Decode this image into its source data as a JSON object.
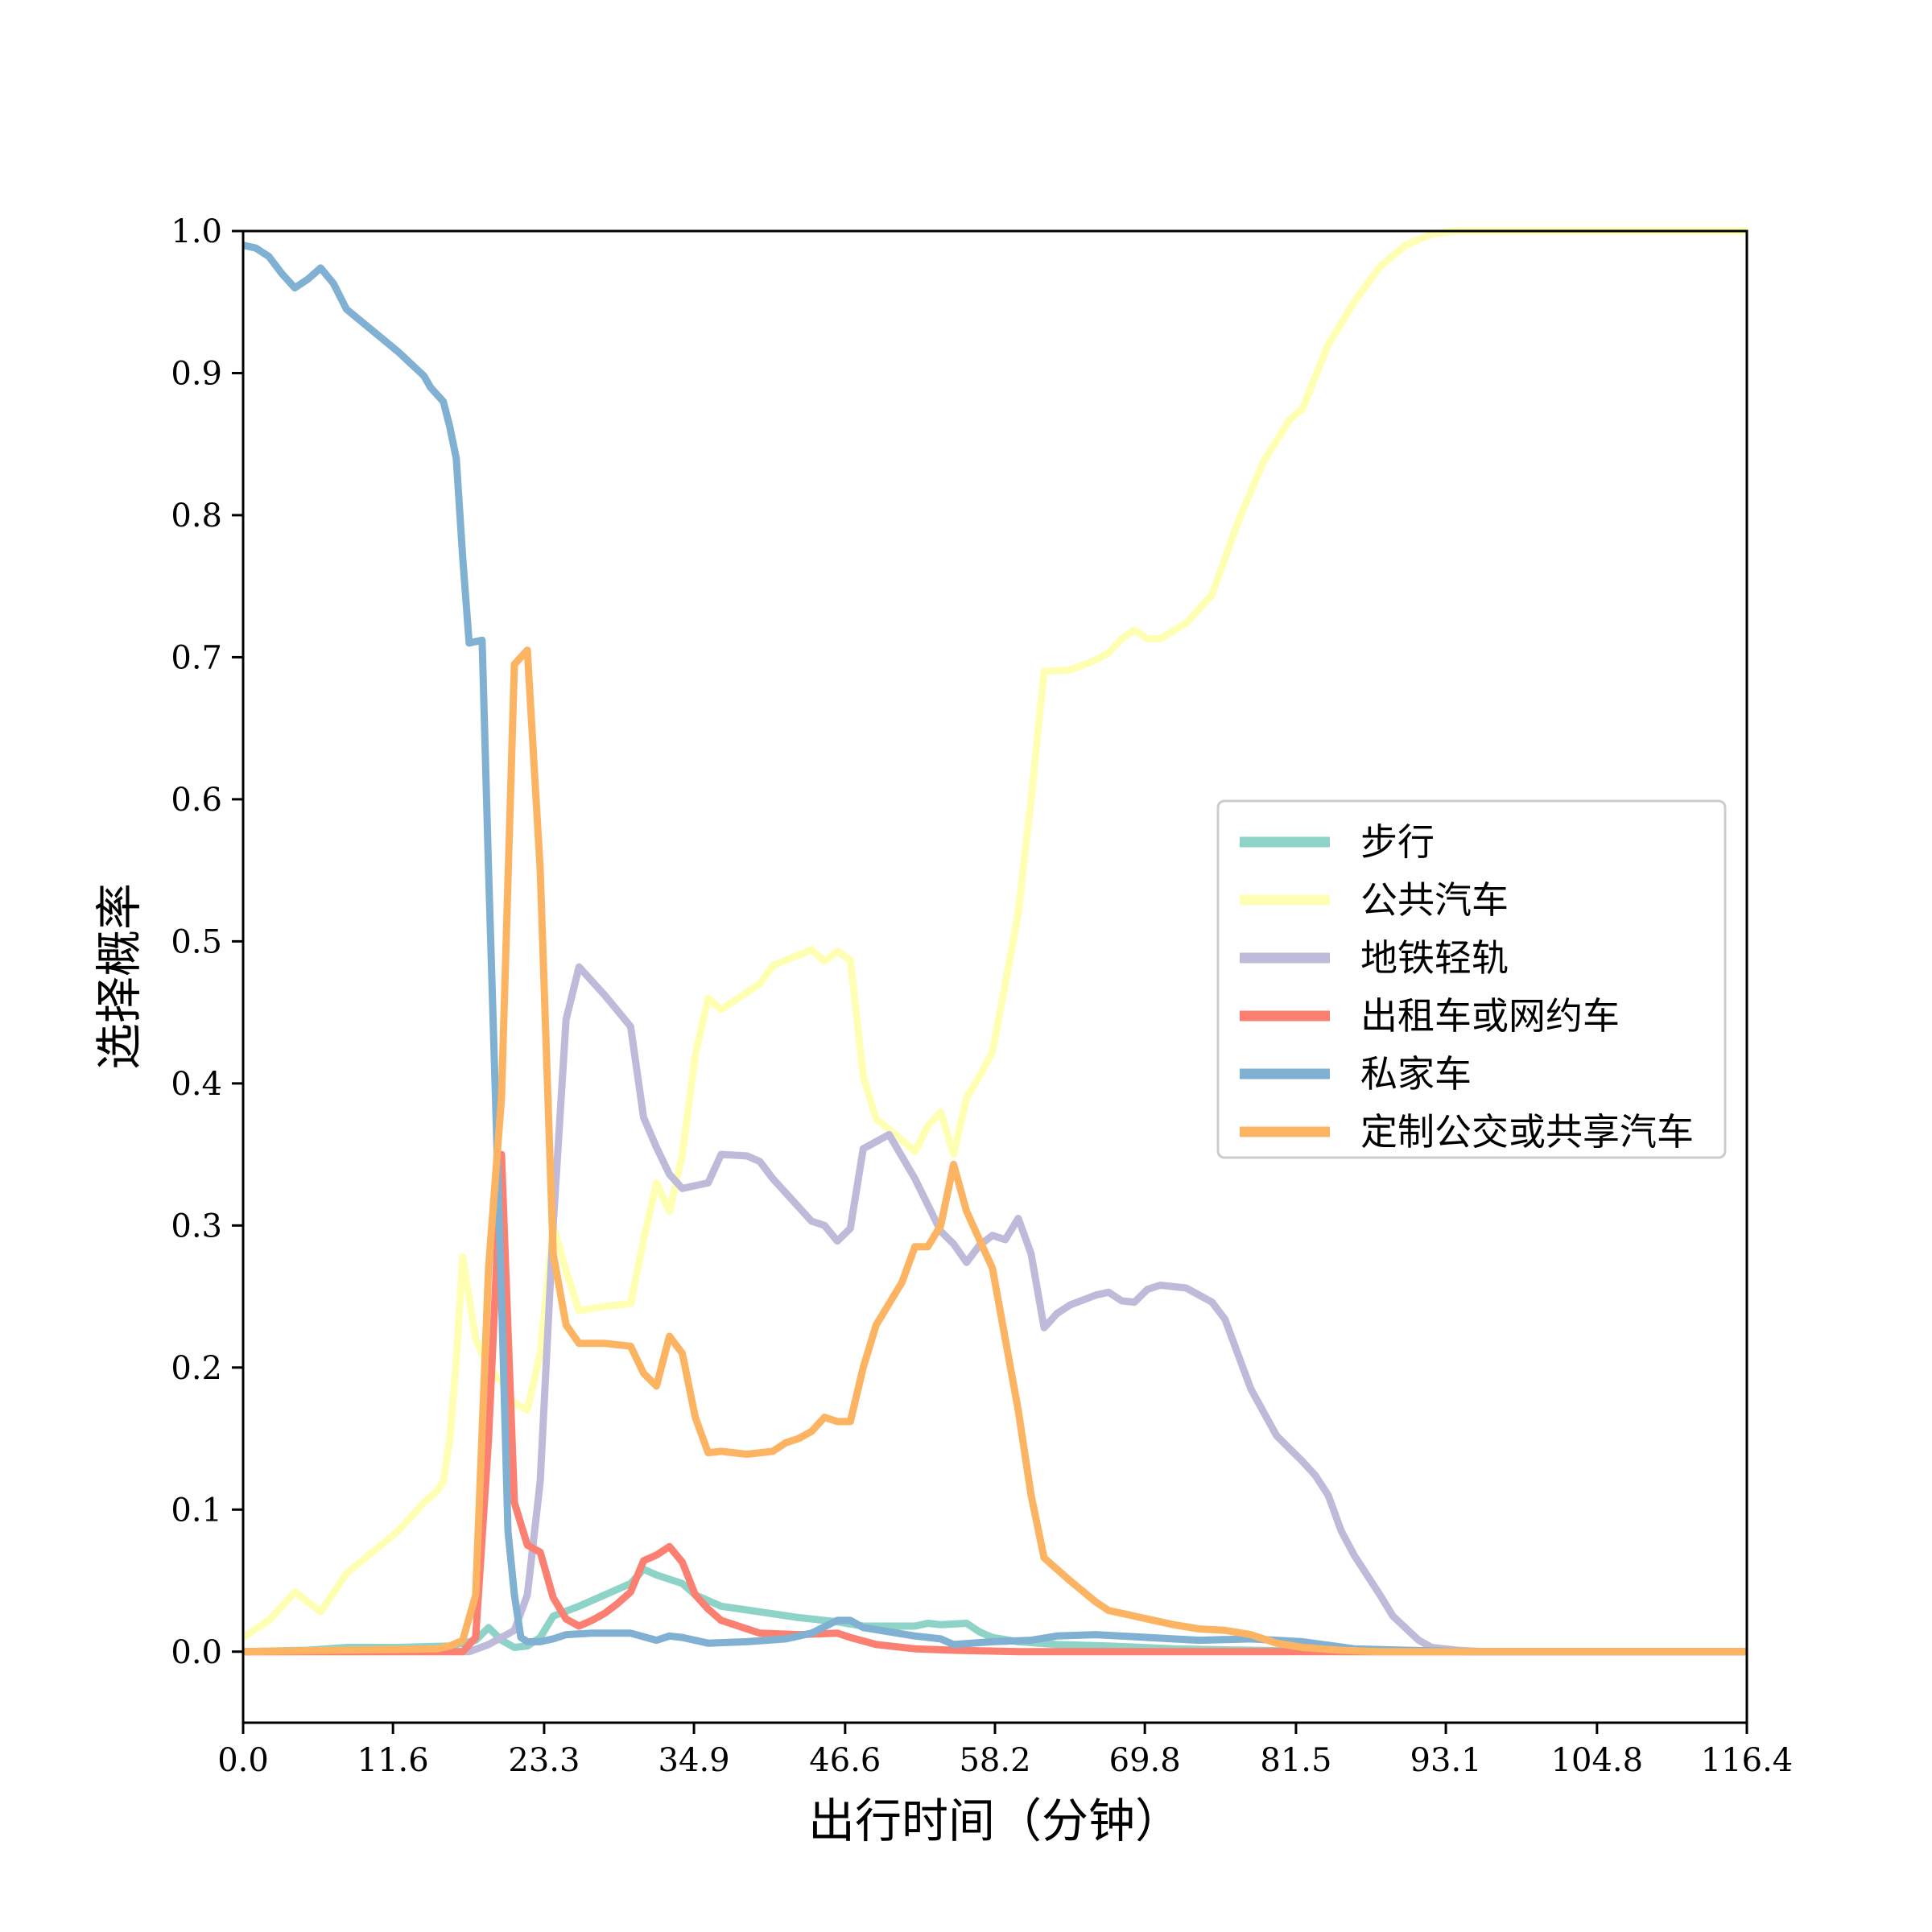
{
  "chart_data": {
    "type": "line",
    "title": "",
    "xlabel": "出行时间（分钟）",
    "ylabel": "选择概率",
    "xlim": [
      0,
      116.4
    ],
    "ylim": [
      -0.05,
      1.0
    ],
    "xticks": [
      "0.0",
      "11.6",
      "23.3",
      "34.9",
      "46.6",
      "58.2",
      "69.8",
      "81.5",
      "93.1",
      "104.8",
      "116.4"
    ],
    "yticks": [
      "0.0",
      "0.1",
      "0.2",
      "0.3",
      "0.4",
      "0.5",
      "0.6",
      "0.7",
      "0.8",
      "0.9",
      "1.0"
    ],
    "legend_position": "center-right",
    "grid": false,
    "series": [
      {
        "name": "步行",
        "color": "#8dd3c7",
        "points": [
          [
            0,
            0
          ],
          [
            5,
            0.001
          ],
          [
            8,
            0.003
          ],
          [
            12,
            0.003
          ],
          [
            16,
            0.004
          ],
          [
            18,
            0.008
          ],
          [
            19,
            0.017
          ],
          [
            20,
            0.008
          ],
          [
            21,
            0.003
          ],
          [
            22,
            0.004
          ],
          [
            23,
            0.01
          ],
          [
            24,
            0.025
          ],
          [
            26,
            0.032
          ],
          [
            28,
            0.04
          ],
          [
            30,
            0.048
          ],
          [
            31,
            0.058
          ],
          [
            32,
            0.054
          ],
          [
            34,
            0.048
          ],
          [
            35,
            0.04
          ],
          [
            37,
            0.032
          ],
          [
            40,
            0.028
          ],
          [
            43,
            0.024
          ],
          [
            46,
            0.021
          ],
          [
            48,
            0.018
          ],
          [
            52,
            0.018
          ],
          [
            53,
            0.02
          ],
          [
            54,
            0.019
          ],
          [
            56,
            0.02
          ],
          [
            57,
            0.014
          ],
          [
            58,
            0.01
          ],
          [
            60,
            0.007
          ],
          [
            63,
            0.005
          ],
          [
            67,
            0.004
          ],
          [
            72,
            0.002
          ],
          [
            78,
            0.001
          ],
          [
            85,
            0
          ],
          [
            116.4,
            0
          ]
        ]
      },
      {
        "name": "公共汽车",
        "color": "#ffffb3",
        "points": [
          [
            0,
            0.01
          ],
          [
            2,
            0.022
          ],
          [
            4,
            0.042
          ],
          [
            6,
            0.028
          ],
          [
            8,
            0.055
          ],
          [
            10,
            0.07
          ],
          [
            12,
            0.085
          ],
          [
            14,
            0.105
          ],
          [
            15,
            0.113
          ],
          [
            15.5,
            0.12
          ],
          [
            16,
            0.15
          ],
          [
            16.5,
            0.205
          ],
          [
            17,
            0.278
          ],
          [
            18,
            0.22
          ],
          [
            19,
            0.2
          ],
          [
            20,
            0.19
          ],
          [
            21,
            0.175
          ],
          [
            22,
            0.17
          ],
          [
            23,
            0.21
          ],
          [
            24,
            0.3
          ],
          [
            25,
            0.268
          ],
          [
            26,
            0.24
          ],
          [
            28,
            0.243
          ],
          [
            30,
            0.245
          ],
          [
            31,
            0.29
          ],
          [
            32,
            0.33
          ],
          [
            33,
            0.31
          ],
          [
            34,
            0.35
          ],
          [
            35,
            0.42
          ],
          [
            36,
            0.46
          ],
          [
            37,
            0.452
          ],
          [
            38,
            0.458
          ],
          [
            40,
            0.47
          ],
          [
            41,
            0.483
          ],
          [
            44,
            0.494
          ],
          [
            45,
            0.486
          ],
          [
            46,
            0.493
          ],
          [
            47,
            0.487
          ],
          [
            48,
            0.405
          ],
          [
            49,
            0.375
          ],
          [
            51,
            0.36
          ],
          [
            52,
            0.352
          ],
          [
            53,
            0.37
          ],
          [
            54,
            0.38
          ],
          [
            55,
            0.35
          ],
          [
            56,
            0.39
          ],
          [
            57,
            0.405
          ],
          [
            58,
            0.422
          ],
          [
            59,
            0.47
          ],
          [
            60,
            0.52
          ],
          [
            61,
            0.6
          ],
          [
            62,
            0.69
          ],
          [
            64,
            0.691
          ],
          [
            66,
            0.698
          ],
          [
            67,
            0.703
          ],
          [
            68,
            0.713
          ],
          [
            69,
            0.719
          ],
          [
            70,
            0.713
          ],
          [
            71,
            0.713
          ],
          [
            73,
            0.724
          ],
          [
            75,
            0.744
          ],
          [
            77,
            0.795
          ],
          [
            79,
            0.838
          ],
          [
            81,
            0.867
          ],
          [
            82,
            0.875
          ],
          [
            84,
            0.92
          ],
          [
            86,
            0.95
          ],
          [
            88,
            0.975
          ],
          [
            90,
            0.99
          ],
          [
            92,
            0.998
          ],
          [
            94,
            1.0
          ],
          [
            116.4,
            1.0
          ]
        ]
      },
      {
        "name": "地铁轻轨",
        "color": "#bebada",
        "points": [
          [
            0,
            0
          ],
          [
            16,
            0
          ],
          [
            17.5,
            0
          ],
          [
            19,
            0.005
          ],
          [
            20,
            0.01
          ],
          [
            21,
            0.015
          ],
          [
            22,
            0.04
          ],
          [
            23,
            0.12
          ],
          [
            24,
            0.3
          ],
          [
            25,
            0.445
          ],
          [
            26,
            0.482
          ],
          [
            28,
            0.462
          ],
          [
            30,
            0.44
          ],
          [
            31,
            0.376
          ],
          [
            32,
            0.355
          ],
          [
            33,
            0.336
          ],
          [
            34,
            0.326
          ],
          [
            35,
            0.328
          ],
          [
            36,
            0.33
          ],
          [
            37,
            0.35
          ],
          [
            39,
            0.349
          ],
          [
            40,
            0.345
          ],
          [
            41,
            0.333
          ],
          [
            43,
            0.313
          ],
          [
            44,
            0.303
          ],
          [
            45,
            0.3
          ],
          [
            46,
            0.289
          ],
          [
            47,
            0.298
          ],
          [
            48,
            0.354
          ],
          [
            50,
            0.364
          ],
          [
            52,
            0.333
          ],
          [
            54,
            0.296
          ],
          [
            55,
            0.287
          ],
          [
            56,
            0.274
          ],
          [
            57,
            0.286
          ],
          [
            58,
            0.293
          ],
          [
            59,
            0.29
          ],
          [
            60,
            0.305
          ],
          [
            61,
            0.28
          ],
          [
            62,
            0.228
          ],
          [
            63,
            0.238
          ],
          [
            64,
            0.244
          ],
          [
            66,
            0.251
          ],
          [
            67,
            0.253
          ],
          [
            68,
            0.247
          ],
          [
            69,
            0.246
          ],
          [
            70,
            0.255
          ],
          [
            71,
            0.258
          ],
          [
            73,
            0.256
          ],
          [
            75,
            0.246
          ],
          [
            76,
            0.234
          ],
          [
            78,
            0.185
          ],
          [
            80,
            0.152
          ],
          [
            82,
            0.134
          ],
          [
            83,
            0.124
          ],
          [
            84,
            0.11
          ],
          [
            85,
            0.085
          ],
          [
            86,
            0.068
          ],
          [
            88,
            0.04
          ],
          [
            89,
            0.025
          ],
          [
            91,
            0.008
          ],
          [
            92,
            0.003
          ],
          [
            94,
            0.001
          ],
          [
            96,
            0
          ],
          [
            116.4,
            0
          ]
        ]
      },
      {
        "name": "出租车或网约车",
        "color": "#fb8072",
        "points": [
          [
            0,
            0
          ],
          [
            17,
            0
          ],
          [
            18,
            0.01
          ],
          [
            19,
            0.15
          ],
          [
            20,
            0.35
          ],
          [
            21,
            0.105
          ],
          [
            22,
            0.075
          ],
          [
            23,
            0.07
          ],
          [
            24,
            0.038
          ],
          [
            25,
            0.023
          ],
          [
            26,
            0.018
          ],
          [
            27,
            0.022
          ],
          [
            28,
            0.027
          ],
          [
            29,
            0.034
          ],
          [
            30,
            0.042
          ],
          [
            31,
            0.064
          ],
          [
            32,
            0.068
          ],
          [
            33,
            0.074
          ],
          [
            34,
            0.063
          ],
          [
            35,
            0.04
          ],
          [
            36,
            0.03
          ],
          [
            37,
            0.022
          ],
          [
            40,
            0.013
          ],
          [
            43,
            0.012
          ],
          [
            46,
            0.013
          ],
          [
            47,
            0.01
          ],
          [
            49,
            0.005
          ],
          [
            52,
            0.002
          ],
          [
            55,
            0.001
          ],
          [
            60,
            0
          ],
          [
            116.4,
            0
          ]
        ]
      },
      {
        "name": "私家车",
        "color": "#80b1d3",
        "points": [
          [
            0,
            0.99
          ],
          [
            1,
            0.988
          ],
          [
            2,
            0.982
          ],
          [
            3,
            0.97
          ],
          [
            4,
            0.96
          ],
          [
            5,
            0.966
          ],
          [
            6,
            0.974
          ],
          [
            7,
            0.963
          ],
          [
            8,
            0.945
          ],
          [
            10,
            0.93
          ],
          [
            12,
            0.915
          ],
          [
            14,
            0.898
          ],
          [
            14.5,
            0.89
          ],
          [
            15.5,
            0.88
          ],
          [
            16,
            0.862
          ],
          [
            16.5,
            0.84
          ],
          [
            17,
            0.77
          ],
          [
            17.5,
            0.71
          ],
          [
            18,
            0.711
          ],
          [
            18.5,
            0.712
          ],
          [
            19,
            0.55
          ],
          [
            20,
            0.25
          ],
          [
            20.5,
            0.085
          ],
          [
            21,
            0.04
          ],
          [
            21.5,
            0.01
          ],
          [
            22,
            0.007
          ],
          [
            23,
            0.007
          ],
          [
            24,
            0.009
          ],
          [
            25,
            0.012
          ],
          [
            27,
            0.013
          ],
          [
            30,
            0.013
          ],
          [
            32,
            0.008
          ],
          [
            33,
            0.011
          ],
          [
            34,
            0.01
          ],
          [
            36,
            0.006
          ],
          [
            39,
            0.007
          ],
          [
            42,
            0.009
          ],
          [
            44,
            0.013
          ],
          [
            46,
            0.022
          ],
          [
            47,
            0.022
          ],
          [
            48,
            0.017
          ],
          [
            50,
            0.014
          ],
          [
            52,
            0.011
          ],
          [
            54,
            0.009
          ],
          [
            55,
            0.005
          ],
          [
            58,
            0.007
          ],
          [
            61,
            0.008
          ],
          [
            63,
            0.011
          ],
          [
            66,
            0.012
          ],
          [
            70,
            0.01
          ],
          [
            74,
            0.008
          ],
          [
            78,
            0.009
          ],
          [
            82,
            0.007
          ],
          [
            86,
            0.002
          ],
          [
            90,
            0.001
          ],
          [
            95,
            0
          ],
          [
            116.4,
            0
          ]
        ]
      },
      {
        "name": "定制公交或共享汽车",
        "color": "#fdb462",
        "points": [
          [
            0,
            0
          ],
          [
            15,
            0.002
          ],
          [
            16,
            0.004
          ],
          [
            17,
            0.008
          ],
          [
            18,
            0.04
          ],
          [
            19,
            0.27
          ],
          [
            20,
            0.39
          ],
          [
            21,
            0.695
          ],
          [
            22,
            0.705
          ],
          [
            23,
            0.55
          ],
          [
            24,
            0.28
          ],
          [
            25,
            0.23
          ],
          [
            26,
            0.217
          ],
          [
            28,
            0.217
          ],
          [
            30,
            0.215
          ],
          [
            31,
            0.196
          ],
          [
            32,
            0.187
          ],
          [
            33,
            0.222
          ],
          [
            34,
            0.21
          ],
          [
            35,
            0.165
          ],
          [
            36,
            0.14
          ],
          [
            37,
            0.141
          ],
          [
            39,
            0.139
          ],
          [
            41,
            0.141
          ],
          [
            42,
            0.147
          ],
          [
            43,
            0.15
          ],
          [
            44,
            0.155
          ],
          [
            45,
            0.165
          ],
          [
            46,
            0.162
          ],
          [
            47,
            0.162
          ],
          [
            48,
            0.2
          ],
          [
            49,
            0.23
          ],
          [
            51,
            0.26
          ],
          [
            52,
            0.285
          ],
          [
            53,
            0.285
          ],
          [
            54,
            0.3
          ],
          [
            55,
            0.343
          ],
          [
            56,
            0.31
          ],
          [
            57,
            0.29
          ],
          [
            58,
            0.27
          ],
          [
            59,
            0.22
          ],
          [
            60,
            0.17
          ],
          [
            61,
            0.11
          ],
          [
            62,
            0.066
          ],
          [
            63,
            0.058
          ],
          [
            64,
            0.05
          ],
          [
            66,
            0.035
          ],
          [
            67,
            0.029
          ],
          [
            69,
            0.025
          ],
          [
            70,
            0.023
          ],
          [
            72,
            0.019
          ],
          [
            74,
            0.016
          ],
          [
            76,
            0.015
          ],
          [
            78,
            0.012
          ],
          [
            80,
            0.006
          ],
          [
            82,
            0.003
          ],
          [
            85,
            0.001
          ],
          [
            88,
            0
          ],
          [
            116.4,
            0
          ]
        ]
      }
    ]
  }
}
